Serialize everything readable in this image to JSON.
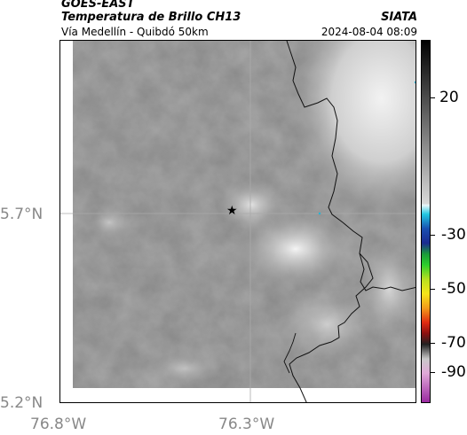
{
  "header": {
    "satellite": "GOES-EAST",
    "product": "Temperatura de Brillo CH13",
    "region": "Vía Medellín - Quibdó 50km",
    "org": "SIATA",
    "timestamp": "2024-08-04 08:09"
  },
  "axes": {
    "lat_ticks": [
      "5.7°N",
      "5.2°N"
    ],
    "lon_ticks": [
      "76.8°W",
      "76.3°W"
    ]
  },
  "colorbar": {
    "ticks": [
      "20",
      "-30",
      "-50",
      "-70",
      "-90"
    ]
  },
  "marker": {
    "symbol": "★"
  }
}
